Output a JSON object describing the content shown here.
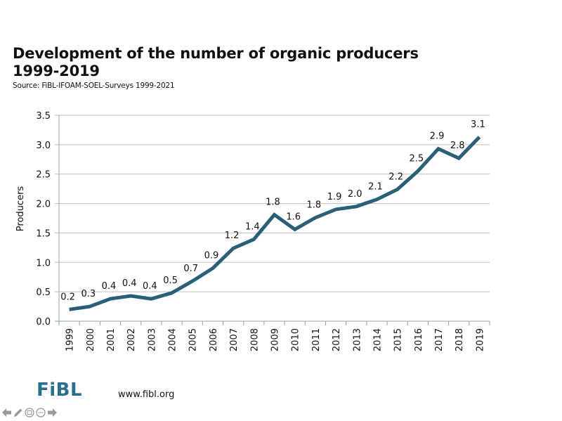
{
  "slide": {
    "title_line1": "Development of the number of organic producers",
    "title_line2": "1999-2019",
    "source": "Source: FiBL-IFOAM-SOEL-Surveys 1999-2021",
    "logo_text": "FiBL",
    "url": "www.fibl.org",
    "controls": [
      {
        "name": "previous-slide",
        "icon": "arrow-left-icon"
      },
      {
        "name": "pen-tool",
        "icon": "pencil-icon"
      },
      {
        "name": "slide-sorter",
        "icon": "grid-icon"
      },
      {
        "name": "more-options",
        "icon": "ellipsis-icon"
      },
      {
        "name": "next-slide",
        "icon": "arrow-right-icon"
      }
    ]
  },
  "chart_data": {
    "type": "line",
    "title": "Development of the number of organic producers 1999-2019",
    "subtitle": "Source: FiBL-IFOAM-SOEL-Surveys 1999-2021",
    "xlabel": "",
    "ylabel": "Producers",
    "ylim": [
      0,
      3.5
    ],
    "yticks": [
      "0.0",
      "0.5",
      "1.0",
      "1.5",
      "2.0",
      "2.5",
      "3.0",
      "3.5"
    ],
    "grid": true,
    "legend": "none",
    "line_color": "#2b5f78",
    "categories": [
      "1999",
      "2000",
      "2001",
      "2002",
      "2003",
      "2004",
      "2005",
      "2006",
      "2007",
      "2008",
      "2009",
      "2010",
      "2011",
      "2012",
      "2013",
      "2014",
      "2015",
      "2016",
      "2017",
      "2018",
      "2019"
    ],
    "series": [
      {
        "name": "Producers",
        "values": [
          0.2,
          0.25,
          0.38,
          0.43,
          0.38,
          0.48,
          0.68,
          0.9,
          1.24,
          1.39,
          1.81,
          1.56,
          1.76,
          1.9,
          1.95,
          2.07,
          2.24,
          2.55,
          2.93,
          2.77,
          3.13
        ],
        "labels": [
          "0.2",
          "0.3",
          "0.4",
          "0.4",
          "0.4",
          "0.5",
          "0.7",
          "0.9",
          "1.2",
          "1.4",
          "1.8",
          "1.6",
          "1.8",
          "1.9",
          "2.0",
          "2.1",
          "2.2",
          "2.5",
          "2.9",
          "2.8",
          "3.1"
        ]
      }
    ]
  }
}
